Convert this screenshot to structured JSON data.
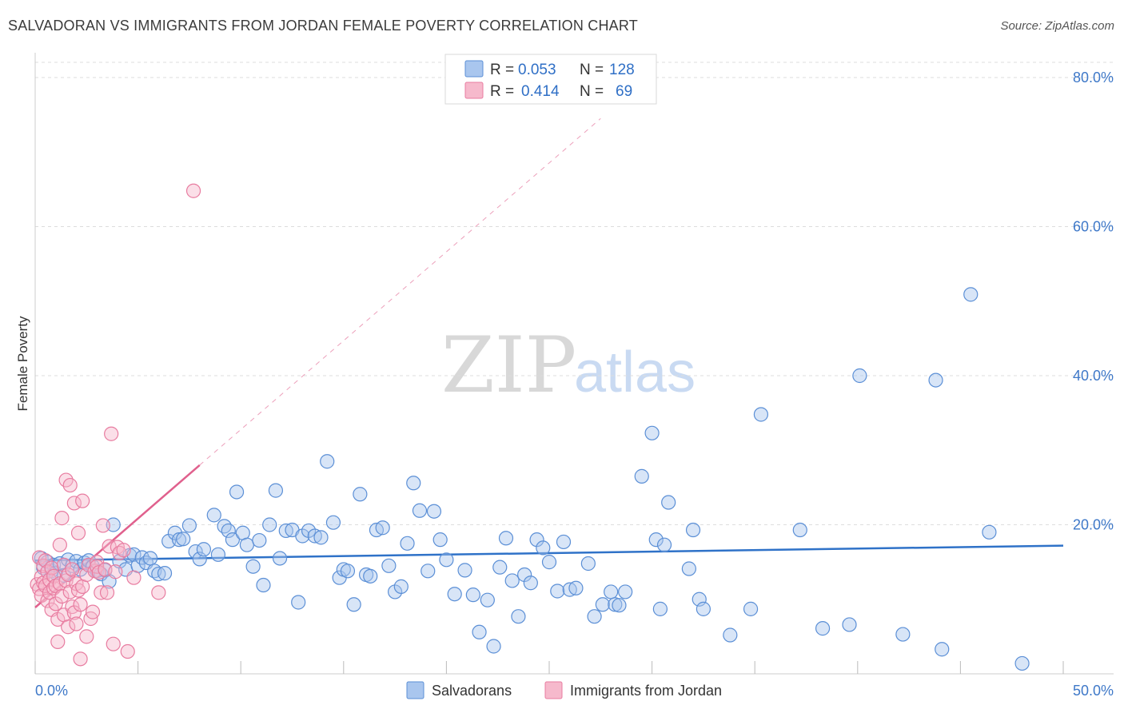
{
  "title": "SALVADORAN VS IMMIGRANTS FROM JORDAN FEMALE POVERTY CORRELATION CHART",
  "source": "Source: ZipAtlas.com",
  "watermark": {
    "zip": "ZIP",
    "atlas": "atlas"
  },
  "legend": {
    "r_label": "R =",
    "n_label": "N =",
    "rows": [
      {
        "r": "0.053",
        "n": "128"
      },
      {
        "r": "0.414",
        "n": "69"
      }
    ]
  },
  "colors": {
    "blue": "#5b8fd6",
    "blue_fill": "#a9c6ee",
    "blue_line": "#2f72c8",
    "pink": "#e87ca0",
    "pink_fill": "#f6b9cc",
    "pink_line": "#e0608d",
    "grid": "#dddddd"
  },
  "chart_data": {
    "type": "scatter",
    "ylabel": "Female Poverty",
    "xlim": [
      0,
      50
    ],
    "ylim": [
      0,
      80
    ],
    "x_tick_labels": [
      "0.0%",
      "50.0%"
    ],
    "y_ticks": [
      20,
      40,
      60,
      80
    ],
    "y_tick_labels": [
      "20.0%",
      "40.0%",
      "60.0%",
      "80.0%"
    ],
    "series": [
      {
        "name": "Salvadorans",
        "trend": {
          "x0": 0,
          "y0": 15.2,
          "x1": 50,
          "y1": 17.2
        },
        "points": [
          [
            0.3,
            15.5
          ],
          [
            0.4,
            14.2
          ],
          [
            0.6,
            15.0
          ],
          [
            0.8,
            13.8
          ],
          [
            0.9,
            14.6
          ],
          [
            1.0,
            13.5
          ],
          [
            1.2,
            14.8
          ],
          [
            1.4,
            13.2
          ],
          [
            1.6,
            15.3
          ],
          [
            1.8,
            14.5
          ],
          [
            2.0,
            15.1
          ],
          [
            2.2,
            14.0
          ],
          [
            2.4,
            14.9
          ],
          [
            2.6,
            15.2
          ],
          [
            2.8,
            14.4
          ],
          [
            3.0,
            13.8
          ],
          [
            3.2,
            13.4
          ],
          [
            3.4,
            13.9
          ],
          [
            3.6,
            12.4
          ],
          [
            3.8,
            20.0
          ],
          [
            4.1,
            15.1
          ],
          [
            4.4,
            14.0
          ],
          [
            4.6,
            15.9
          ],
          [
            4.8,
            16.0
          ],
          [
            5.0,
            14.5
          ],
          [
            5.2,
            15.6
          ],
          [
            5.4,
            14.9
          ],
          [
            5.6,
            15.5
          ],
          [
            5.8,
            13.8
          ],
          [
            6.0,
            13.4
          ],
          [
            6.3,
            13.5
          ],
          [
            6.5,
            17.8
          ],
          [
            6.8,
            18.9
          ],
          [
            7.0,
            18.0
          ],
          [
            7.2,
            18.1
          ],
          [
            7.5,
            19.9
          ],
          [
            7.8,
            16.4
          ],
          [
            8.0,
            15.4
          ],
          [
            8.2,
            16.7
          ],
          [
            8.7,
            21.3
          ],
          [
            8.9,
            16.0
          ],
          [
            9.2,
            19.8
          ],
          [
            9.4,
            19.2
          ],
          [
            9.6,
            18.0
          ],
          [
            9.8,
            24.4
          ],
          [
            10.1,
            18.9
          ],
          [
            10.3,
            17.3
          ],
          [
            10.6,
            14.4
          ],
          [
            10.9,
            17.9
          ],
          [
            11.1,
            11.9
          ],
          [
            11.4,
            20.0
          ],
          [
            11.7,
            24.6
          ],
          [
            11.9,
            15.5
          ],
          [
            12.2,
            19.2
          ],
          [
            12.5,
            19.3
          ],
          [
            12.8,
            9.6
          ],
          [
            13.0,
            18.5
          ],
          [
            13.3,
            19.2
          ],
          [
            13.6,
            18.5
          ],
          [
            13.9,
            18.3
          ],
          [
            14.2,
            28.5
          ],
          [
            14.5,
            20.3
          ],
          [
            14.8,
            12.9
          ],
          [
            15.0,
            14.0
          ],
          [
            15.2,
            13.8
          ],
          [
            15.5,
            9.3
          ],
          [
            15.8,
            24.1
          ],
          [
            16.1,
            13.3
          ],
          [
            16.3,
            13.1
          ],
          [
            16.6,
            19.3
          ],
          [
            16.9,
            19.6
          ],
          [
            17.2,
            14.5
          ],
          [
            17.5,
            11.0
          ],
          [
            17.8,
            11.7
          ],
          [
            18.1,
            17.5
          ],
          [
            18.4,
            25.6
          ],
          [
            18.7,
            21.9
          ],
          [
            19.1,
            13.8
          ],
          [
            19.4,
            21.8
          ],
          [
            19.7,
            18.0
          ],
          [
            20.0,
            15.3
          ],
          [
            20.4,
            10.7
          ],
          [
            20.9,
            13.9
          ],
          [
            21.3,
            10.6
          ],
          [
            21.6,
            5.6
          ],
          [
            22.0,
            9.9
          ],
          [
            22.3,
            3.7
          ],
          [
            22.6,
            14.3
          ],
          [
            22.9,
            18.2
          ],
          [
            23.2,
            12.5
          ],
          [
            23.5,
            7.7
          ],
          [
            23.8,
            13.3
          ],
          [
            24.1,
            12.2
          ],
          [
            24.4,
            18.0
          ],
          [
            24.7,
            16.9
          ],
          [
            25.0,
            15.0
          ],
          [
            25.4,
            11.1
          ],
          [
            25.7,
            17.7
          ],
          [
            26.0,
            11.3
          ],
          [
            26.3,
            11.5
          ],
          [
            26.9,
            14.8
          ],
          [
            27.2,
            7.7
          ],
          [
            27.6,
            9.3
          ],
          [
            28.0,
            11.0
          ],
          [
            28.2,
            9.3
          ],
          [
            28.4,
            9.2
          ],
          [
            28.7,
            11.0
          ],
          [
            29.5,
            26.5
          ],
          [
            30.0,
            32.3
          ],
          [
            30.2,
            18.0
          ],
          [
            30.4,
            8.7
          ],
          [
            30.6,
            17.3
          ],
          [
            30.8,
            23.0
          ],
          [
            31.8,
            14.1
          ],
          [
            32.0,
            19.3
          ],
          [
            32.3,
            10.0
          ],
          [
            32.5,
            8.7
          ],
          [
            33.8,
            5.2
          ],
          [
            34.8,
            8.7
          ],
          [
            35.3,
            34.8
          ],
          [
            37.2,
            19.3
          ],
          [
            38.3,
            6.1
          ],
          [
            39.6,
            6.6
          ],
          [
            40.1,
            40.0
          ],
          [
            42.2,
            5.3
          ],
          [
            43.8,
            39.4
          ],
          [
            44.1,
            3.3
          ],
          [
            45.5,
            50.9
          ],
          [
            46.4,
            19.0
          ],
          [
            48.0,
            1.4
          ]
        ]
      },
      {
        "name": "Immigrants from Jordan",
        "trend": {
          "x0": 0,
          "y0": 8.9,
          "x1": 8,
          "y1": 28.0
        },
        "trend_extended": {
          "x0": 8,
          "y0": 28.0,
          "x1": 27.5,
          "y1": 74.5
        },
        "points": [
          [
            0.1,
            12.0
          ],
          [
            0.2,
            15.6
          ],
          [
            0.2,
            11.4
          ],
          [
            0.3,
            13.0
          ],
          [
            0.3,
            10.5
          ],
          [
            0.4,
            14.5
          ],
          [
            0.4,
            12.2
          ],
          [
            0.5,
            15.2
          ],
          [
            0.5,
            11.8
          ],
          [
            0.6,
            13.7
          ],
          [
            0.6,
            9.8
          ],
          [
            0.7,
            12.6
          ],
          [
            0.7,
            10.9
          ],
          [
            0.8,
            14.2
          ],
          [
            0.8,
            8.6
          ],
          [
            0.9,
            11.5
          ],
          [
            0.9,
            13.1
          ],
          [
            1.0,
            9.4
          ],
          [
            1.0,
            11.8
          ],
          [
            1.1,
            7.3
          ],
          [
            1.1,
            4.3
          ],
          [
            1.2,
            17.3
          ],
          [
            1.2,
            12.1
          ],
          [
            1.3,
            20.9
          ],
          [
            1.3,
            10.4
          ],
          [
            1.4,
            7.9
          ],
          [
            1.4,
            14.6
          ],
          [
            1.5,
            26.0
          ],
          [
            1.5,
            12.5
          ],
          [
            1.6,
            13.3
          ],
          [
            1.6,
            6.3
          ],
          [
            1.7,
            25.3
          ],
          [
            1.7,
            11.0
          ],
          [
            1.8,
            9.0
          ],
          [
            1.8,
            14.0
          ],
          [
            1.9,
            22.9
          ],
          [
            1.9,
            8.2
          ],
          [
            2.0,
            6.7
          ],
          [
            2.0,
            12.1
          ],
          [
            2.1,
            18.9
          ],
          [
            2.1,
            11.2
          ],
          [
            2.2,
            9.3
          ],
          [
            2.2,
            2.0
          ],
          [
            2.3,
            23.2
          ],
          [
            2.3,
            11.7
          ],
          [
            2.5,
            5.0
          ],
          [
            2.5,
            13.3
          ],
          [
            2.6,
            14.6
          ],
          [
            2.7,
            7.4
          ],
          [
            2.8,
            8.3
          ],
          [
            2.9,
            13.8
          ],
          [
            3.0,
            15.0
          ],
          [
            3.0,
            14.4
          ],
          [
            3.1,
            13.6
          ],
          [
            3.2,
            10.9
          ],
          [
            3.3,
            19.9
          ],
          [
            3.4,
            14.0
          ],
          [
            3.5,
            10.9
          ],
          [
            3.6,
            17.1
          ],
          [
            3.7,
            32.2
          ],
          [
            3.8,
            4.0
          ],
          [
            3.9,
            13.7
          ],
          [
            4.0,
            17.0
          ],
          [
            4.1,
            16.2
          ],
          [
            4.3,
            16.6
          ],
          [
            4.5,
            3.0
          ],
          [
            4.8,
            12.9
          ],
          [
            6.0,
            10.9
          ],
          [
            7.7,
            64.8
          ]
        ]
      }
    ],
    "bottom_legend": [
      "Salvadorans",
      "Immigrants from Jordan"
    ]
  }
}
